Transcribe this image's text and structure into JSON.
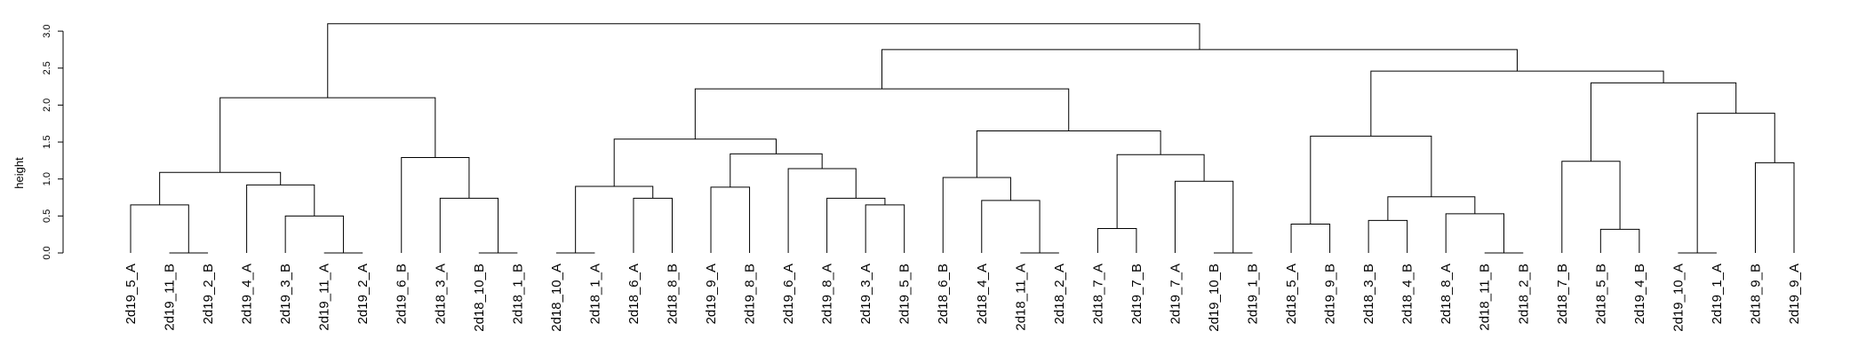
{
  "chart_data": {
    "type": "dendrogram",
    "ylabel": "height",
    "ylim": [
      0,
      3.0
    ],
    "yticks": [
      "0.0",
      "0.5",
      "1.0",
      "1.5",
      "2.0",
      "2.5",
      "3.0"
    ],
    "leaves": [
      "2d19_5_A",
      "2d19_11_B",
      "2d19_2_B",
      "2d19_4_A",
      "2d19_3_B",
      "2d19_11_A",
      "2d19_2_A",
      "2d19_6_B",
      "2d18_3_A",
      "2d18_10_B",
      "2d18_1_B",
      "2d18_10_A",
      "2d18_1_A",
      "2d18_6_A",
      "2d18_8_B",
      "2d19_9_A",
      "2d19_8_B",
      "2d19_6_A",
      "2d19_8_A",
      "2d19_3_A",
      "2d19_5_B",
      "2d18_6_B",
      "2d18_4_A",
      "2d18_11_A",
      "2d18_2_A",
      "2d18_7_A",
      "2d19_7_B",
      "2d19_7_A",
      "2d19_10_B",
      "2d19_1_B",
      "2d18_5_A",
      "2d19_9_B",
      "2d18_3_B",
      "2d18_4_B",
      "2d18_8_A",
      "2d18_11_B",
      "2d18_2_B",
      "2d18_7_B",
      "2d18_5_B",
      "2d19_4_B",
      "2d19_10_A",
      "2d19_1_A",
      "2d18_9_B",
      "2d19_9_A"
    ],
    "merges": [
      [
        -2,
        -3,
        0.0
      ],
      [
        -6,
        -7,
        0.0
      ],
      [
        -10,
        -11,
        0.0
      ],
      [
        -12,
        -13,
        0.0
      ],
      [
        -24,
        -25,
        0.0
      ],
      [
        -29,
        -30,
        0.0
      ],
      [
        -36,
        -37,
        0.0
      ],
      [
        -41,
        -42,
        0.0
      ],
      [
        -1,
        1,
        0.65
      ],
      [
        -5,
        2,
        0.5
      ],
      [
        -4,
        10,
        0.92
      ],
      [
        9,
        11,
        1.09
      ],
      [
        -9,
        3,
        0.74
      ],
      [
        -8,
        13,
        1.29
      ],
      [
        12,
        14,
        2.1
      ],
      [
        -14,
        -15,
        0.74
      ],
      [
        4,
        16,
        0.9
      ],
      [
        -16,
        -17,
        0.89
      ],
      [
        -20,
        -21,
        0.65
      ],
      [
        -19,
        19,
        0.74
      ],
      [
        -18,
        20,
        1.14
      ],
      [
        18,
        21,
        1.34
      ],
      [
        17,
        22,
        1.54
      ],
      [
        -23,
        5,
        0.71
      ],
      [
        -22,
        24,
        1.02
      ],
      [
        -26,
        -27,
        0.33
      ],
      [
        -28,
        6,
        0.97
      ],
      [
        26,
        27,
        1.33
      ],
      [
        25,
        28,
        1.65
      ],
      [
        23,
        29,
        2.22
      ],
      [
        -31,
        -32,
        0.39
      ],
      [
        -33,
        -34,
        0.44
      ],
      [
        -35,
        7,
        0.53
      ],
      [
        32,
        33,
        0.76
      ],
      [
        31,
        34,
        1.58
      ],
      [
        -39,
        -40,
        0.32
      ],
      [
        -38,
        36,
        1.24
      ],
      [
        -43,
        -44,
        1.22
      ],
      [
        8,
        38,
        1.89
      ],
      [
        37,
        39,
        2.3
      ],
      [
        35,
        40,
        2.46
      ],
      [
        30,
        41,
        2.75
      ],
      [
        15,
        42,
        3.1
      ]
    ]
  }
}
